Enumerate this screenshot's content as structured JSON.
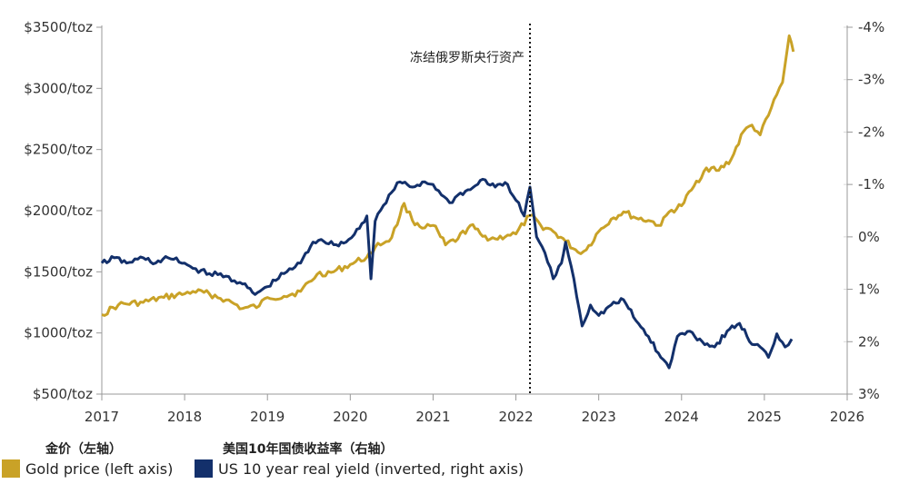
{
  "colors": {
    "gold": "#C9A227",
    "navy": "#13306B",
    "grid": "#d9d9d9",
    "axis": "#999999",
    "marker": "#111111"
  },
  "chart_data": {
    "type": "line",
    "title": "",
    "xlabel": "",
    "x_ticks": [
      "2017",
      "2018",
      "2019",
      "2020",
      "2021",
      "2022",
      "2023",
      "2024",
      "2025",
      "2026"
    ],
    "x_range": [
      2017,
      2026
    ],
    "y_left": {
      "ticks": [
        "$3500/toz",
        "$3000/toz",
        "$2500/toz",
        "$2000/toz",
        "$1500/toz",
        "$1000/toz",
        "$500/toz"
      ],
      "range": [
        500,
        3500
      ],
      "unit": "$/toz"
    },
    "y_right": {
      "ticks": [
        "-4%",
        "-3%",
        "-2%",
        "-1%",
        "0%",
        "1%",
        "2%",
        "3%"
      ],
      "range": [
        -4,
        3
      ],
      "inverted": true,
      "unit": "%"
    },
    "grid": "horizontal",
    "annotation": {
      "x": 2022.17,
      "label": "冻结俄罗斯央行资产"
    },
    "series": [
      {
        "name": "Gold price (left axis)",
        "axis": "left",
        "color": "#C9A227",
        "points": [
          [
            2017.0,
            1150
          ],
          [
            2017.2,
            1230
          ],
          [
            2017.5,
            1250
          ],
          [
            2017.75,
            1290
          ],
          [
            2018.0,
            1320
          ],
          [
            2018.1,
            1340
          ],
          [
            2018.3,
            1320
          ],
          [
            2018.5,
            1270
          ],
          [
            2018.7,
            1200
          ],
          [
            2018.9,
            1220
          ],
          [
            2019.0,
            1290
          ],
          [
            2019.2,
            1300
          ],
          [
            2019.4,
            1340
          ],
          [
            2019.6,
            1480
          ],
          [
            2019.8,
            1500
          ],
          [
            2020.0,
            1560
          ],
          [
            2020.2,
            1620
          ],
          [
            2020.3,
            1700
          ],
          [
            2020.5,
            1780
          ],
          [
            2020.6,
            1960
          ],
          [
            2020.65,
            2060
          ],
          [
            2020.75,
            1920
          ],
          [
            2020.9,
            1860
          ],
          [
            2021.0,
            1880
          ],
          [
            2021.15,
            1720
          ],
          [
            2021.3,
            1770
          ],
          [
            2021.45,
            1880
          ],
          [
            2021.6,
            1790
          ],
          [
            2021.75,
            1770
          ],
          [
            2021.9,
            1800
          ],
          [
            2022.0,
            1810
          ],
          [
            2022.17,
            1960
          ],
          [
            2022.3,
            1880
          ],
          [
            2022.45,
            1830
          ],
          [
            2022.6,
            1750
          ],
          [
            2022.75,
            1660
          ],
          [
            2022.85,
            1680
          ],
          [
            2023.0,
            1830
          ],
          [
            2023.15,
            1930
          ],
          [
            2023.3,
            1990
          ],
          [
            2023.45,
            1940
          ],
          [
            2023.6,
            1920
          ],
          [
            2023.75,
            1880
          ],
          [
            2023.85,
            1990
          ],
          [
            2024.0,
            2040
          ],
          [
            2024.15,
            2200
          ],
          [
            2024.3,
            2350
          ],
          [
            2024.45,
            2330
          ],
          [
            2024.6,
            2420
          ],
          [
            2024.75,
            2650
          ],
          [
            2024.85,
            2700
          ],
          [
            2024.95,
            2620
          ],
          [
            2025.05,
            2780
          ],
          [
            2025.15,
            2950
          ],
          [
            2025.22,
            3050
          ],
          [
            2025.3,
            3430
          ],
          [
            2025.35,
            3300
          ]
        ]
      },
      {
        "name": "US 10 year real yield (inverted, right axis)",
        "axis": "right",
        "color": "#13306B",
        "points": [
          [
            2017.0,
            0.5
          ],
          [
            2017.15,
            0.4
          ],
          [
            2017.3,
            0.5
          ],
          [
            2017.5,
            0.4
          ],
          [
            2017.65,
            0.5
          ],
          [
            2017.8,
            0.4
          ],
          [
            2018.0,
            0.5
          ],
          [
            2018.1,
            0.6
          ],
          [
            2018.3,
            0.7
          ],
          [
            2018.5,
            0.75
          ],
          [
            2018.7,
            0.9
          ],
          [
            2018.85,
            1.1
          ],
          [
            2019.0,
            0.95
          ],
          [
            2019.2,
            0.7
          ],
          [
            2019.4,
            0.5
          ],
          [
            2019.55,
            0.1
          ],
          [
            2019.65,
            0.05
          ],
          [
            2019.8,
            0.15
          ],
          [
            2019.95,
            0.1
          ],
          [
            2020.05,
            -0.05
          ],
          [
            2020.2,
            -0.4
          ],
          [
            2020.25,
            0.8
          ],
          [
            2020.3,
            -0.3
          ],
          [
            2020.4,
            -0.6
          ],
          [
            2020.5,
            -0.85
          ],
          [
            2020.6,
            -1.05
          ],
          [
            2020.75,
            -0.95
          ],
          [
            2020.9,
            -1.05
          ],
          [
            2021.0,
            -1.0
          ],
          [
            2021.1,
            -0.8
          ],
          [
            2021.2,
            -0.65
          ],
          [
            2021.3,
            -0.8
          ],
          [
            2021.45,
            -0.9
          ],
          [
            2021.6,
            -1.1
          ],
          [
            2021.75,
            -0.95
          ],
          [
            2021.9,
            -1.0
          ],
          [
            2022.0,
            -0.7
          ],
          [
            2022.1,
            -0.4
          ],
          [
            2022.17,
            -0.95
          ],
          [
            2022.25,
            0.0
          ],
          [
            2022.35,
            0.3
          ],
          [
            2022.45,
            0.8
          ],
          [
            2022.55,
            0.5
          ],
          [
            2022.6,
            0.1
          ],
          [
            2022.7,
            0.8
          ],
          [
            2022.8,
            1.7
          ],
          [
            2022.9,
            1.3
          ],
          [
            2023.0,
            1.5
          ],
          [
            2023.15,
            1.3
          ],
          [
            2023.3,
            1.2
          ],
          [
            2023.45,
            1.6
          ],
          [
            2023.6,
            1.9
          ],
          [
            2023.75,
            2.3
          ],
          [
            2023.85,
            2.5
          ],
          [
            2023.95,
            1.9
          ],
          [
            2024.1,
            1.8
          ],
          [
            2024.25,
            2.0
          ],
          [
            2024.4,
            2.1
          ],
          [
            2024.55,
            1.8
          ],
          [
            2024.7,
            1.65
          ],
          [
            2024.85,
            2.05
          ],
          [
            2024.95,
            2.1
          ],
          [
            2025.05,
            2.3
          ],
          [
            2025.15,
            1.85
          ],
          [
            2025.25,
            2.1
          ],
          [
            2025.33,
            1.95
          ]
        ]
      }
    ]
  },
  "legend": {
    "gold_cn": "金价（左轴）",
    "navy_cn": "美国10年国债收益率（右轴）",
    "gold_label": "Gold price (left axis)",
    "navy_label": "US 10 year real yield (inverted, right axis)"
  }
}
